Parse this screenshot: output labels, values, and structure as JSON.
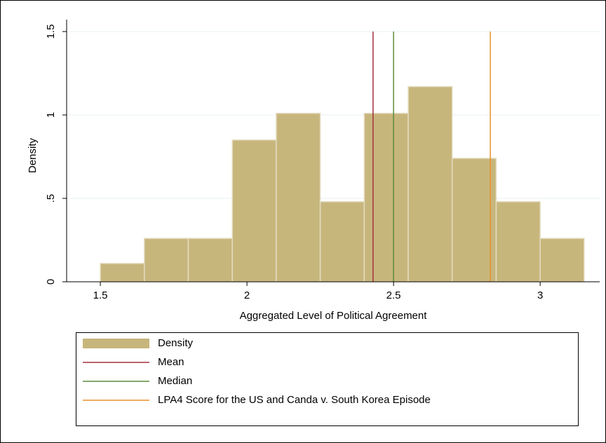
{
  "chart_data": {
    "type": "histogram",
    "x_label": "Aggregated Level of Political Agreement",
    "y_label": "Density",
    "legend_label": "Density",
    "color": "#c7b67c",
    "bins": [
      1.5,
      1.65,
      1.8,
      1.95,
      2.1,
      2.25,
      2.4,
      2.55,
      2.7,
      2.85,
      3.0,
      3.15
    ],
    "values": [
      0.11,
      0.26,
      0.26,
      0.85,
      1.01,
      0.48,
      1.01,
      1.17,
      0.74,
      0.48,
      0.26
    ],
    "reference_lines": [
      {
        "name": "Mean",
        "color": "#a4303f",
        "x": 2.43
      },
      {
        "name": "Median",
        "color": "#5b8c3b",
        "x": 2.5
      },
      {
        "name": "LPA4 Score for the US and Canda v. South Korea Episode",
        "color": "#e8902a",
        "x": 2.83
      }
    ],
    "xlim": [
      1.385,
      3.203
    ],
    "ylim": [
      0,
      1.5
    ],
    "xticks": [
      1.5,
      2,
      2.5,
      3
    ],
    "yticks": [
      0,
      {
        "value": 0.5,
        "label": ".5"
      },
      1,
      1.5
    ],
    "grid": true
  }
}
